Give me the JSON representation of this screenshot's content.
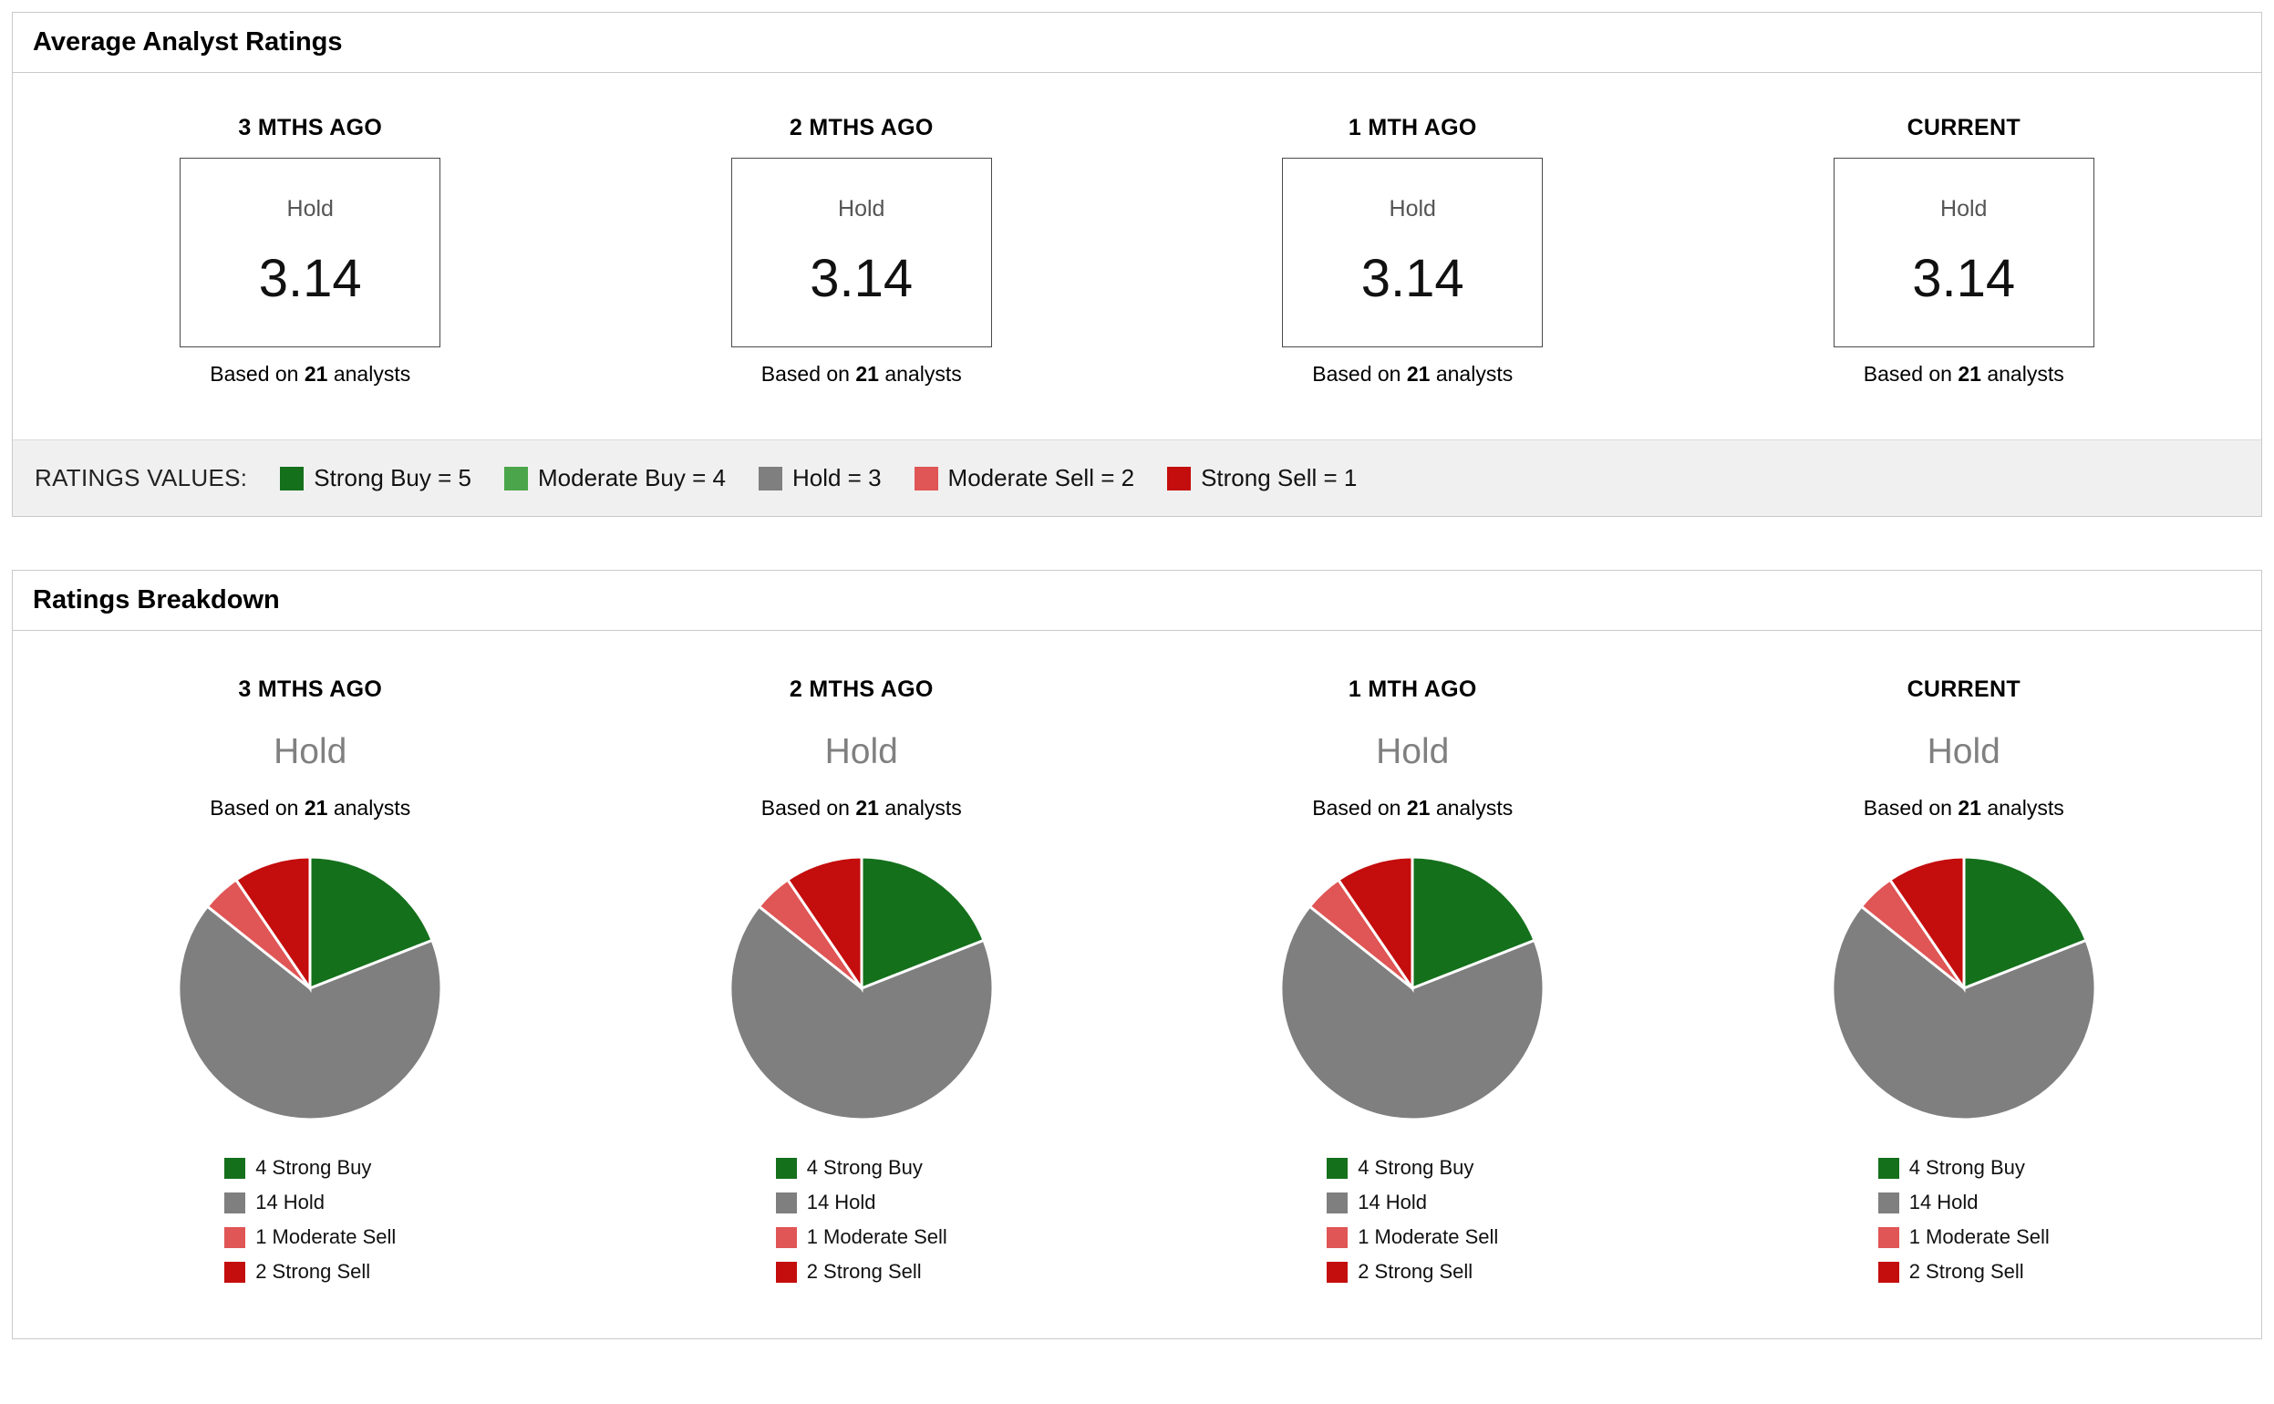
{
  "colors": {
    "strong_buy": "#15701c",
    "moderate_buy": "#4ba64b",
    "hold": "#7f7f7f",
    "moderate_sell": "#e05555",
    "strong_sell": "#c40d0d"
  },
  "average_panel": {
    "title": "Average Analyst Ratings",
    "columns": [
      {
        "period": "3 MTHS AGO",
        "rating_label": "Hold",
        "rating_value": "3.14",
        "based": {
          "prefix": "Based on",
          "count": "21",
          "suffix": "analysts"
        }
      },
      {
        "period": "2 MTHS AGO",
        "rating_label": "Hold",
        "rating_value": "3.14",
        "based": {
          "prefix": "Based on",
          "count": "21",
          "suffix": "analysts"
        }
      },
      {
        "period": "1 MTH AGO",
        "rating_label": "Hold",
        "rating_value": "3.14",
        "based": {
          "prefix": "Based on",
          "count": "21",
          "suffix": "analysts"
        }
      },
      {
        "period": "CURRENT",
        "rating_label": "Hold",
        "rating_value": "3.14",
        "based": {
          "prefix": "Based on",
          "count": "21",
          "suffix": "analysts"
        }
      }
    ],
    "ratings_values": {
      "label": "RATINGS VALUES:",
      "items": [
        {
          "label": "Strong Buy = 5",
          "color": "#15701c"
        },
        {
          "label": "Moderate Buy = 4",
          "color": "#4ba64b"
        },
        {
          "label": "Hold = 3",
          "color": "#7f7f7f"
        },
        {
          "label": "Moderate Sell = 2",
          "color": "#e05555"
        },
        {
          "label": "Strong Sell = 1",
          "color": "#c40d0d"
        }
      ]
    }
  },
  "breakdown_panel": {
    "title": "Ratings Breakdown",
    "columns": [
      {
        "period": "3 MTHS AGO",
        "rating_label": "Hold",
        "based": {
          "prefix": "Based on",
          "count": "21",
          "suffix": "analysts"
        },
        "legend": [
          {
            "label": "4 Strong Buy",
            "color": "#15701c"
          },
          {
            "label": "14 Hold",
            "color": "#7f7f7f"
          },
          {
            "label": "1 Moderate Sell",
            "color": "#e05555"
          },
          {
            "label": "2 Strong Sell",
            "color": "#c40d0d"
          }
        ]
      },
      {
        "period": "2 MTHS AGO",
        "rating_label": "Hold",
        "based": {
          "prefix": "Based on",
          "count": "21",
          "suffix": "analysts"
        },
        "legend": [
          {
            "label": "4 Strong Buy",
            "color": "#15701c"
          },
          {
            "label": "14 Hold",
            "color": "#7f7f7f"
          },
          {
            "label": "1 Moderate Sell",
            "color": "#e05555"
          },
          {
            "label": "2 Strong Sell",
            "color": "#c40d0d"
          }
        ]
      },
      {
        "period": "1 MTH AGO",
        "rating_label": "Hold",
        "based": {
          "prefix": "Based on",
          "count": "21",
          "suffix": "analysts"
        },
        "legend": [
          {
            "label": "4 Strong Buy",
            "color": "#15701c"
          },
          {
            "label": "14 Hold",
            "color": "#7f7f7f"
          },
          {
            "label": "1 Moderate Sell",
            "color": "#e05555"
          },
          {
            "label": "2 Strong Sell",
            "color": "#c40d0d"
          }
        ]
      },
      {
        "period": "CURRENT",
        "rating_label": "Hold",
        "based": {
          "prefix": "Based on",
          "count": "21",
          "suffix": "analysts"
        },
        "legend": [
          {
            "label": "4 Strong Buy",
            "color": "#15701c"
          },
          {
            "label": "14 Hold",
            "color": "#7f7f7f"
          },
          {
            "label": "1 Moderate Sell",
            "color": "#e05555"
          },
          {
            "label": "2 Strong Sell",
            "color": "#c40d0d"
          }
        ]
      }
    ]
  },
  "chart_data": [
    {
      "type": "pie",
      "title": "3 MTHS AGO",
      "labels": [
        "Strong Buy",
        "Hold",
        "Moderate Sell",
        "Strong Sell"
      ],
      "values": [
        4,
        14,
        1,
        2
      ],
      "colors": [
        "#15701c",
        "#7f7f7f",
        "#e05555",
        "#c40d0d"
      ],
      "total_analysts": 21,
      "average_rating": 3.14,
      "start_angle_deg": -90,
      "direction": "clockwise",
      "legend_position": "bottom"
    },
    {
      "type": "pie",
      "title": "2 MTHS AGO",
      "labels": [
        "Strong Buy",
        "Hold",
        "Moderate Sell",
        "Strong Sell"
      ],
      "values": [
        4,
        14,
        1,
        2
      ],
      "colors": [
        "#15701c",
        "#7f7f7f",
        "#e05555",
        "#c40d0d"
      ],
      "total_analysts": 21,
      "average_rating": 3.14,
      "start_angle_deg": -90,
      "direction": "clockwise",
      "legend_position": "bottom"
    },
    {
      "type": "pie",
      "title": "1 MTH AGO",
      "labels": [
        "Strong Buy",
        "Hold",
        "Moderate Sell",
        "Strong Sell"
      ],
      "values": [
        4,
        14,
        1,
        2
      ],
      "colors": [
        "#15701c",
        "#7f7f7f",
        "#e05555",
        "#c40d0d"
      ],
      "total_analysts": 21,
      "average_rating": 3.14,
      "start_angle_deg": -90,
      "direction": "clockwise",
      "legend_position": "bottom"
    },
    {
      "type": "pie",
      "title": "CURRENT",
      "labels": [
        "Strong Buy",
        "Hold",
        "Moderate Sell",
        "Strong Sell"
      ],
      "values": [
        4,
        14,
        1,
        2
      ],
      "colors": [
        "#15701c",
        "#7f7f7f",
        "#e05555",
        "#c40d0d"
      ],
      "total_analysts": 21,
      "average_rating": 3.14,
      "start_angle_deg": -90,
      "direction": "clockwise",
      "legend_position": "bottom"
    }
  ]
}
